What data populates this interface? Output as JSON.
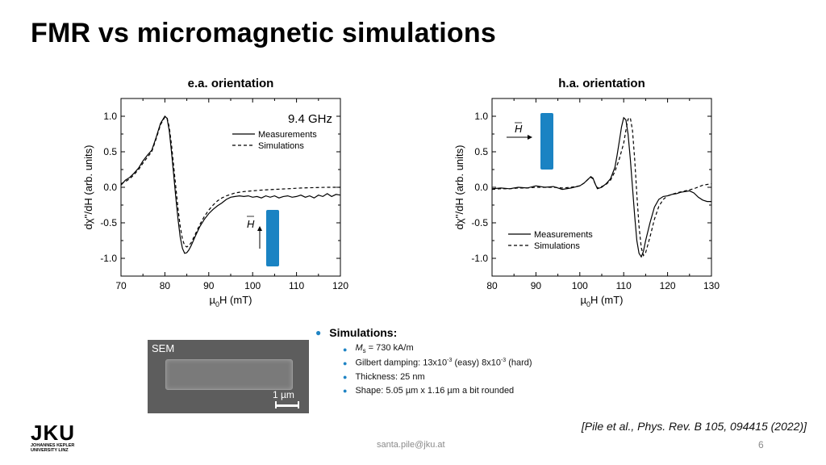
{
  "slide": {
    "title": "FMR vs micromagnetic simulations",
    "citation": "[Pile et al., Phys. Rev. B 105, 094415 (2022)]",
    "email": "santa.pile@jku.at",
    "page_number": "6"
  },
  "logo": {
    "mark": "JKU",
    "line1": "JOHANNES KEPLER",
    "line2": "UNIVERSITY LINZ"
  },
  "sem": {
    "label": "SEM",
    "scale_label": "1 µm"
  },
  "simulations": {
    "heading": "Simulations:",
    "items": [
      "Ms = 730 kA/m",
      "Gilbert damping: 13x10-3 (easy) 8x10-3 (hard)",
      "Thickness: 25 nm",
      "Shape: 5.05 µm x 1.16 µm a bit rounded"
    ]
  },
  "colors": {
    "accent": "#1f84c4",
    "sample": "#1a83c3"
  },
  "chart_data": [
    {
      "type": "line",
      "title": "e.a. orientation",
      "annotation": "9.4 GHz",
      "field_label": "H",
      "xlabel": "µ0H (mT)",
      "ylabel": "dχ''/dH (arb. units)",
      "xlim": [
        70,
        120
      ],
      "ylim": [
        -1.25,
        1.25
      ],
      "xticks": [
        70,
        80,
        90,
        100,
        110,
        120
      ],
      "yticks": [
        1.0,
        0.5,
        0.0,
        -0.5,
        -1.0
      ],
      "legend_position": "top-right",
      "series": [
        {
          "name": "Measurements",
          "style": "solid",
          "x": [
            70,
            71,
            72,
            73,
            74,
            75,
            76,
            77,
            78,
            79,
            80,
            80.5,
            81,
            81.5,
            82,
            82.5,
            83,
            83.5,
            84,
            84.5,
            85,
            85.5,
            86,
            87,
            88,
            89,
            90,
            91,
            92,
            93,
            94,
            95,
            96,
            97,
            98,
            99,
            100,
            101,
            102,
            103,
            104,
            105,
            106,
            107,
            108,
            109,
            110,
            111,
            112,
            113,
            114,
            115,
            116,
            117,
            118,
            119,
            120
          ],
          "y": [
            0.03,
            0.1,
            0.14,
            0.2,
            0.27,
            0.37,
            0.45,
            0.52,
            0.7,
            0.9,
            1.0,
            0.97,
            0.8,
            0.5,
            0.18,
            -0.15,
            -0.45,
            -0.7,
            -0.86,
            -0.93,
            -0.92,
            -0.88,
            -0.82,
            -0.68,
            -0.55,
            -0.45,
            -0.37,
            -0.31,
            -0.26,
            -0.22,
            -0.17,
            -0.14,
            -0.13,
            -0.12,
            -0.13,
            -0.12,
            -0.14,
            -0.13,
            -0.15,
            -0.12,
            -0.14,
            -0.12,
            -0.15,
            -0.13,
            -0.12,
            -0.14,
            -0.13,
            -0.11,
            -0.14,
            -0.12,
            -0.15,
            -0.11,
            -0.13,
            -0.09,
            -0.13,
            -0.1,
            -0.11
          ]
        },
        {
          "name": "Simulations",
          "style": "dashed",
          "x": [
            70,
            71,
            72,
            73,
            74,
            75,
            76,
            77,
            78,
            79,
            80,
            80.5,
            81,
            81.5,
            82,
            82.5,
            83,
            83.5,
            84,
            84.5,
            85,
            85.5,
            86,
            87,
            88,
            89,
            90,
            91,
            92,
            93,
            94,
            95,
            96,
            98,
            100,
            102,
            105,
            108,
            111,
            114,
            117,
            120
          ],
          "y": [
            0.05,
            0.08,
            0.12,
            0.18,
            0.25,
            0.34,
            0.42,
            0.5,
            0.68,
            0.88,
            0.99,
            0.98,
            0.85,
            0.6,
            0.3,
            0.0,
            -0.3,
            -0.55,
            -0.73,
            -0.82,
            -0.84,
            -0.82,
            -0.78,
            -0.65,
            -0.52,
            -0.41,
            -0.32,
            -0.25,
            -0.19,
            -0.15,
            -0.12,
            -0.1,
            -0.08,
            -0.06,
            -0.05,
            -0.04,
            -0.03,
            -0.02,
            -0.01,
            -0.005,
            0.0,
            0.0
          ]
        }
      ]
    },
    {
      "type": "line",
      "title": "h.a. orientation",
      "field_label": "H",
      "xlabel": "µ0H (mT)",
      "ylabel": "dχ''/dH (arb. units)",
      "xlim": [
        80,
        130
      ],
      "ylim": [
        -1.25,
        1.25
      ],
      "xticks": [
        80,
        90,
        100,
        110,
        120,
        130
      ],
      "yticks": [
        1.0,
        0.5,
        0.0,
        -0.5,
        -1.0
      ],
      "legend_position": "bottom-left",
      "series": [
        {
          "name": "Measurements",
          "style": "solid",
          "x": [
            80,
            82,
            84,
            86,
            88,
            90,
            92,
            94,
            96,
            98,
            100,
            101,
            102,
            102.5,
            103,
            103.5,
            104,
            105,
            106,
            107,
            108,
            108.5,
            109,
            109.5,
            110,
            110.5,
            111,
            111.5,
            112,
            112.5,
            113,
            113.5,
            114,
            114.5,
            115,
            116,
            117,
            118,
            119,
            120,
            121,
            122,
            123,
            124,
            125,
            126,
            127,
            128,
            129,
            130
          ],
          "y": [
            -0.02,
            -0.01,
            -0.02,
            0.0,
            -0.01,
            0.02,
            0.0,
            0.01,
            -0.03,
            -0.01,
            0.02,
            0.06,
            0.12,
            0.15,
            0.13,
            0.05,
            -0.02,
            0.0,
            0.05,
            0.12,
            0.28,
            0.45,
            0.65,
            0.85,
            0.98,
            0.95,
            0.75,
            0.4,
            0.0,
            -0.4,
            -0.75,
            -0.93,
            -0.98,
            -0.9,
            -0.75,
            -0.5,
            -0.28,
            -0.17,
            -0.13,
            -0.12,
            -0.1,
            -0.09,
            -0.07,
            -0.06,
            -0.05,
            -0.08,
            -0.14,
            -0.18,
            -0.2,
            -0.2
          ]
        },
        {
          "name": "Simulations",
          "style": "dashed",
          "x": [
            80,
            82,
            84,
            86,
            88,
            90,
            92,
            94,
            96,
            98,
            100,
            101,
            102,
            102.5,
            103,
            103.5,
            104,
            105,
            106,
            107,
            108,
            109,
            110,
            110.5,
            111,
            111.5,
            112,
            112.5,
            113,
            113.5,
            114,
            114.5,
            115,
            116,
            117,
            118,
            119,
            120,
            122,
            124,
            126,
            128,
            130
          ],
          "y": [
            -0.03,
            -0.02,
            -0.02,
            -0.01,
            -0.01,
            0.0,
            0.0,
            0.0,
            -0.01,
            0.0,
            0.02,
            0.06,
            0.12,
            0.14,
            0.12,
            0.05,
            -0.01,
            0.01,
            0.04,
            0.1,
            0.22,
            0.4,
            0.62,
            0.8,
            0.96,
            0.98,
            0.8,
            0.4,
            -0.1,
            -0.55,
            -0.85,
            -0.96,
            -0.92,
            -0.7,
            -0.45,
            -0.27,
            -0.17,
            -0.12,
            -0.08,
            -0.05,
            -0.02,
            0.03,
            0.05
          ]
        }
      ]
    }
  ]
}
